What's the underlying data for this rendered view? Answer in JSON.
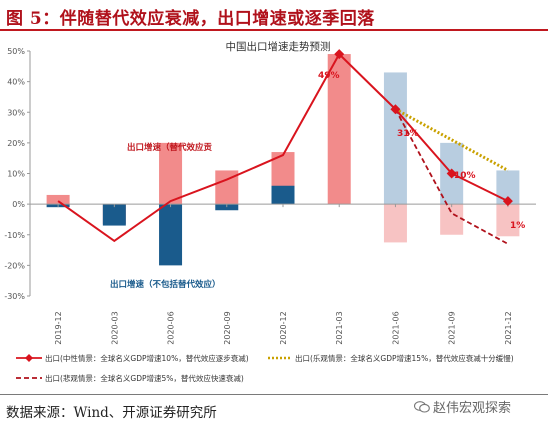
{
  "figure": {
    "title": "图 5：伴随替代效应衰减，出口增速或逐季回落",
    "source": "数据来源：Wind、开源证券研究所",
    "watermark": "赵伟宏观探索"
  },
  "chart_data": {
    "type": "bar",
    "title": "中国出口增速走势预测",
    "categories": [
      "2019-12",
      "2020-03",
      "2020-06",
      "2020-09",
      "2020-12",
      "2021-03",
      "2021-06",
      "2021-09",
      "2021-12"
    ],
    "y_ticks": [
      "50%",
      "40%",
      "30%",
      "20%",
      "10%",
      "0%",
      "-10%",
      "-20%",
      "-30%"
    ],
    "ylim": [
      -30,
      50
    ],
    "grid": false,
    "bars_positive": {
      "name": "出口增速（替代效应贡）",
      "values": [
        3,
        -6.5,
        20,
        11,
        17,
        49,
        43,
        20,
        11
      ],
      "colors": [
        "#f28b8b",
        "#f28b8b",
        "#f28b8b",
        "#f28b8b",
        "#f28b8b",
        "#f28b8b",
        "#b8cde0",
        "#b8cde0",
        "#b8cde0"
      ]
    },
    "bars_negative": {
      "name": "出口增速（不包括替代效应）",
      "values": [
        -1,
        -7,
        -20,
        -2,
        6,
        null,
        -12.5,
        -10,
        -10.5
      ],
      "colors": [
        "#1a5b8c",
        "#1a5b8c",
        "#1a5b8c",
        "#1a5b8c",
        "#1a5b8c",
        null,
        "#f7c3c3",
        "#f7c3c3",
        "#f7c3c3"
      ]
    },
    "series": [
      {
        "name": "出口(中性情景：全球名义GDP增速10%，替代效应逐步衰减)",
        "style": "solid-diamond",
        "color": "#d9141e",
        "values": [
          1,
          -12,
          1,
          8,
          16,
          49,
          31,
          10,
          1
        ]
      },
      {
        "name": "出口(乐观情景：全球名义GDP增速15%，替代效应衰减十分缓慢)",
        "style": "dotted",
        "color": "#c9a100",
        "values": [
          null,
          null,
          null,
          null,
          null,
          null,
          31,
          null,
          11
        ]
      },
      {
        "name": "出口(悲观情景：全球名义GDP增速5%，替代效应快速衰减)",
        "style": "dashed",
        "color": "#b0111b",
        "values": [
          null,
          null,
          null,
          null,
          null,
          null,
          31,
          -3,
          -13
        ]
      }
    ],
    "annotations": {
      "bar_pos_label": "出口增速（替代效应贡",
      "bar_neg_label": "出口增速（不包括替代效应）",
      "pt_2103": "49%",
      "pt_2106": "31%",
      "pt_2109": "10%",
      "pt_2112": "1%"
    },
    "legend": {
      "neutral": "出口(中性情景：全球名义GDP增速10%，替代效应逐步衰减)",
      "optimistic": "出口(乐观情景：全球名义GDP增速15%，替代效应衰减十分缓慢)",
      "pessimistic": "出口(悲观情景：全球名义GDP增速5%，替代效应快速衰减)"
    },
    "colors": {
      "accent": "#d9141e",
      "dark": "#b0111b",
      "gold": "#c9a100",
      "navy": "#1a5b8c",
      "pink": "#f28b8b",
      "lightblue": "#b8cde0",
      "lightpink": "#f7c3c3"
    }
  }
}
